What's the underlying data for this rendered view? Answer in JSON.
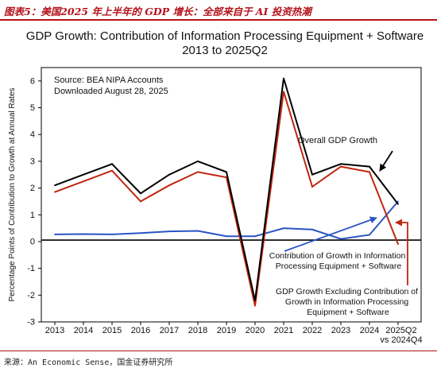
{
  "figure_header": "图表5：美国2025 年上半年的 GDP 增长：全部来自于 AI 投资热潮",
  "figure_source": "来源：An Economic Sense，国金证券研究所",
  "colors": {
    "accent": "#b5121b",
    "overall": "#000000",
    "excluding": "#c0260f",
    "contribution": "#2b55c4"
  },
  "chart_data": {
    "type": "line",
    "title": "GDP Growth:  Contribution of Information Processing Equipment + Software",
    "subtitle": "2013 to 2025Q2",
    "ylabel": "Percentage Points of Contribution to Growth at Annual Rates",
    "xlabel": "",
    "ylim": [
      -3,
      6.5
    ],
    "yticks": [
      "-3",
      "-2",
      "-1",
      "0",
      "1",
      "2",
      "3",
      "4",
      "5",
      "6"
    ],
    "categories": [
      "2013",
      "2014",
      "2015",
      "2016",
      "2017",
      "2018",
      "2019",
      "2020",
      "2021",
      "2022",
      "2023",
      "2024",
      "2025Q2 vs 2024Q4"
    ],
    "xtick_lines": [
      [
        "2013"
      ],
      [
        "2014"
      ],
      [
        "2015"
      ],
      [
        "2016"
      ],
      [
        "2017"
      ],
      [
        "2018"
      ],
      [
        "2019"
      ],
      [
        "2020"
      ],
      [
        "2021"
      ],
      [
        "2022"
      ],
      [
        "2023"
      ],
      [
        "2024"
      ],
      [
        "2025Q2",
        "vs 2024Q4"
      ]
    ],
    "source_note": [
      "Source:  BEA NIPA Accounts",
      "Downloaded August 28, 2025"
    ],
    "grid": false,
    "zero_line": true,
    "series": [
      {
        "name": "Overall GDP Growth",
        "color": "#000000",
        "values": [
          2.1,
          2.5,
          2.9,
          1.8,
          2.5,
          3.0,
          2.6,
          -2.2,
          6.1,
          2.5,
          2.9,
          2.8,
          1.4
        ]
      },
      {
        "name": "GDP Growth Excluding Contribution of Growth in Information Processing Equipment + Software",
        "color": "#c0260f",
        "values": [
          1.85,
          2.25,
          2.65,
          1.5,
          2.1,
          2.6,
          2.4,
          -2.4,
          5.6,
          2.05,
          2.8,
          2.6,
          -0.1
        ]
      },
      {
        "name": "Contribution of Growth in Information Processing Equipment + Software",
        "color": "#2b55c4",
        "values": [
          0.27,
          0.28,
          0.27,
          0.32,
          0.38,
          0.4,
          0.2,
          0.2,
          0.5,
          0.45,
          0.1,
          0.25,
          1.5
        ]
      }
    ],
    "annotations": [
      {
        "lines": [
          "Overall GDP Growth"
        ]
      },
      {
        "lines": [
          "Contribution of Growth in Information",
          "Processing Equipment + Software"
        ]
      },
      {
        "lines": [
          "GDP Growth Excluding Contribution of",
          "Growth in Information Processing",
          "Equipment + Software"
        ]
      }
    ]
  }
}
